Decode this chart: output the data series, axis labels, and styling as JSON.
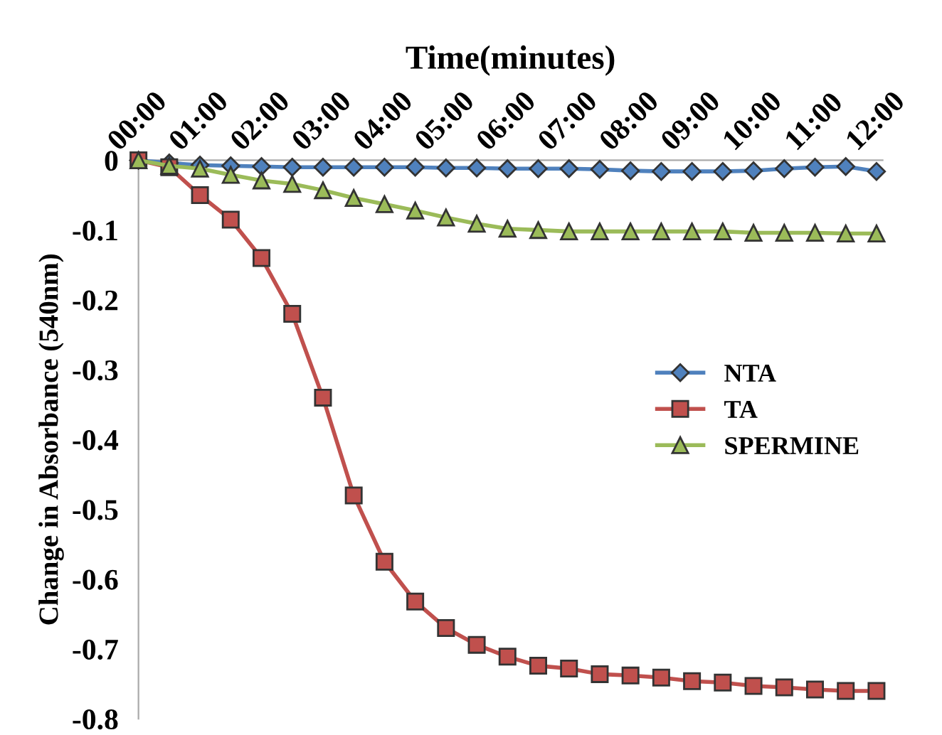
{
  "chart_data": {
    "type": "line",
    "xlabel": "Time(minutes)",
    "ylabel": "Change in Absorbance (540nm)",
    "categories": [
      "00:00",
      null,
      "01:00",
      null,
      "02:00",
      null,
      "03:00",
      null,
      "04:00",
      null,
      "05:00",
      null,
      "06:00",
      null,
      "07:00",
      null,
      "08:00",
      null,
      "09:00",
      null,
      "10:00",
      null,
      "11:00",
      null,
      "12:00"
    ],
    "series": [
      {
        "name": "NTA",
        "color": "#4f81bd",
        "marker": "diamond",
        "values": [
          0,
          -0.004,
          -0.007,
          -0.008,
          -0.009,
          -0.01,
          -0.01,
          -0.01,
          -0.01,
          -0.01,
          -0.011,
          -0.011,
          -0.012,
          -0.012,
          -0.012,
          -0.013,
          -0.015,
          -0.016,
          -0.016,
          -0.016,
          -0.015,
          -0.012,
          -0.01,
          -0.009,
          -0.016
        ]
      },
      {
        "name": "TA",
        "color": "#c0504d",
        "marker": "square",
        "values": [
          0,
          -0.01,
          -0.05,
          -0.085,
          -0.14,
          -0.22,
          -0.34,
          -0.48,
          -0.575,
          -0.632,
          -0.67,
          -0.694,
          -0.711,
          -0.724,
          -0.728,
          -0.736,
          -0.738,
          -0.741,
          -0.746,
          -0.748,
          -0.753,
          -0.755,
          -0.758,
          -0.76,
          -0.76
        ]
      },
      {
        "name": "SPERMINE",
        "color": "#9bbb59",
        "marker": "triangle",
        "values": [
          0,
          -0.008,
          -0.012,
          -0.021,
          -0.029,
          -0.034,
          -0.043,
          -0.054,
          -0.063,
          -0.072,
          -0.082,
          -0.091,
          -0.098,
          -0.1,
          -0.102,
          -0.102,
          -0.102,
          -0.102,
          -0.102,
          -0.102,
          -0.104,
          -0.104,
          -0.104,
          -0.105,
          -0.105
        ]
      }
    ],
    "ylim": [
      -0.8,
      0
    ],
    "yticks": [
      0,
      -0.1,
      -0.2,
      -0.3,
      -0.4,
      -0.5,
      -0.6,
      -0.7,
      -0.8
    ],
    "grid": false,
    "legend": "right",
    "line_style": "solid"
  }
}
